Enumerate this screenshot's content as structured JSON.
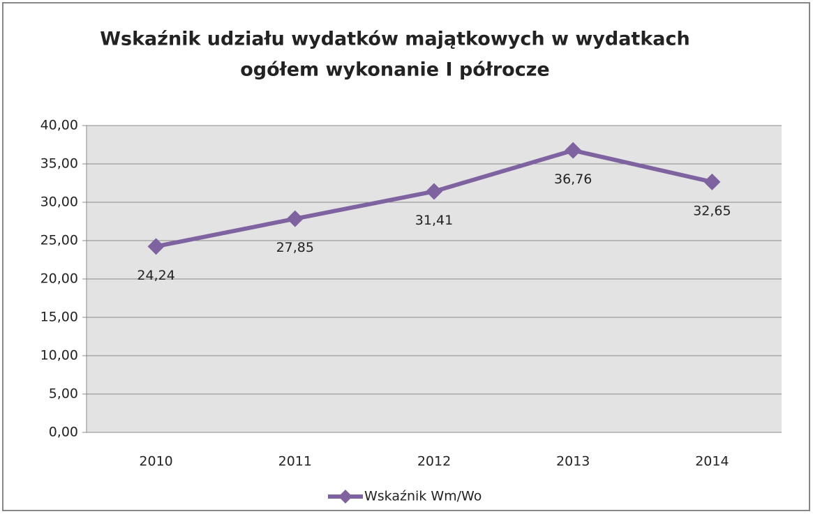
{
  "chart_data": {
    "type": "line",
    "title": [
      "Wskaźnik udziału wydatków majątkowych w wydatkach",
      "ogółem wykonanie I półrocze"
    ],
    "categories": [
      "2010",
      "2011",
      "2012",
      "2013",
      "2014"
    ],
    "series": [
      {
        "name": "Wskaźnik Wm/Wo",
        "color": "#7f63a1",
        "values": [
          24.24,
          27.85,
          31.41,
          36.76,
          32.65
        ],
        "value_labels": [
          "24,24",
          "27,85",
          "31,41",
          "36,76",
          "32,65"
        ]
      }
    ],
    "ylim": [
      0,
      40
    ],
    "yticks": [
      {
        "value": 0,
        "label": "0,00"
      },
      {
        "value": 5,
        "label": "5,00"
      },
      {
        "value": 10,
        "label": "10,00"
      },
      {
        "value": 15,
        "label": "15,00"
      },
      {
        "value": 20,
        "label": "20,00"
      },
      {
        "value": 25,
        "label": "25,00"
      },
      {
        "value": 30,
        "label": "30,00"
      },
      {
        "value": 35,
        "label": "35,00"
      },
      {
        "value": 40,
        "label": "40,00"
      }
    ],
    "grid": true,
    "legend": "bottom"
  }
}
